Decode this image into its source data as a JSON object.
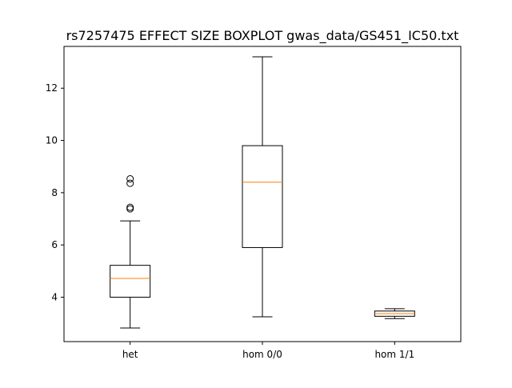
{
  "chart_data": {
    "type": "boxplot",
    "title": "rs7257475 EFFECT SIZE BOXPLOT gwas_data/GS451_IC50.txt",
    "xlabel": "",
    "ylabel": "",
    "ylim": [
      2.3,
      13.6
    ],
    "yticks": [
      4,
      6,
      8,
      10,
      12
    ],
    "grid": false,
    "categories": [
      "het",
      "hom 0/0",
      "hom 1/1"
    ],
    "boxes": [
      {
        "category": "het",
        "whisker_low": 2.82,
        "q1": 4.0,
        "median": 4.72,
        "q3": 5.22,
        "whisker_high": 6.92,
        "fliers": [
          7.38,
          7.44,
          8.36,
          8.53
        ]
      },
      {
        "category": "hom 0/0",
        "whisker_low": 3.25,
        "q1": 5.9,
        "median": 8.4,
        "q3": 9.8,
        "whisker_high": 13.2,
        "fliers": []
      },
      {
        "category": "hom 1/1",
        "whisker_low": 3.18,
        "q1": 3.27,
        "median": 3.37,
        "q3": 3.47,
        "whisker_high": 3.56,
        "fliers": []
      }
    ],
    "colors": {
      "box": "#000000",
      "median": "#ff7f0e",
      "axes": "#000000"
    }
  }
}
